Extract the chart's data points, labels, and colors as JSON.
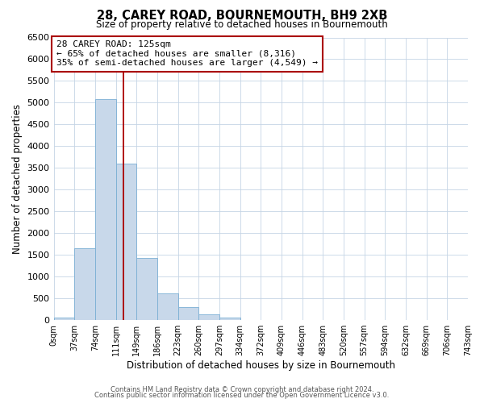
{
  "title": "28, CAREY ROAD, BOURNEMOUTH, BH9 2XB",
  "subtitle": "Size of property relative to detached houses in Bournemouth",
  "xlabel": "Distribution of detached houses by size in Bournemouth",
  "ylabel": "Number of detached properties",
  "bin_labels": [
    "0sqm",
    "37sqm",
    "74sqm",
    "111sqm",
    "149sqm",
    "186sqm",
    "223sqm",
    "260sqm",
    "297sqm",
    "334sqm",
    "372sqm",
    "409sqm",
    "446sqm",
    "483sqm",
    "520sqm",
    "557sqm",
    "594sqm",
    "632sqm",
    "669sqm",
    "706sqm",
    "743sqm"
  ],
  "bar_values": [
    50,
    1650,
    5080,
    3590,
    1420,
    610,
    300,
    140,
    50,
    0,
    0,
    0,
    0,
    0,
    0,
    0,
    0,
    0,
    0,
    0,
    0
  ],
  "bar_color": "#c8d8ea",
  "bar_edge_color": "#7aafd4",
  "ylim": [
    0,
    6500
  ],
  "yticks": [
    0,
    500,
    1000,
    1500,
    2000,
    2500,
    3000,
    3500,
    4000,
    4500,
    5000,
    5500,
    6000,
    6500
  ],
  "property_line_x": 125,
  "bin_width": 37,
  "annotation_title": "28 CAREY ROAD: 125sqm",
  "annotation_line1": "← 65% of detached houses are smaller (8,316)",
  "annotation_line2": "35% of semi-detached houses are larger (4,549) →",
  "annotation_box_color": "#ffffff",
  "annotation_box_edge": "#aa0000",
  "property_line_color": "#aa0000",
  "footer1": "Contains HM Land Registry data © Crown copyright and database right 2024.",
  "footer2": "Contains public sector information licensed under the Open Government Licence v3.0.",
  "background_color": "#ffffff",
  "grid_color": "#c5d5e5"
}
